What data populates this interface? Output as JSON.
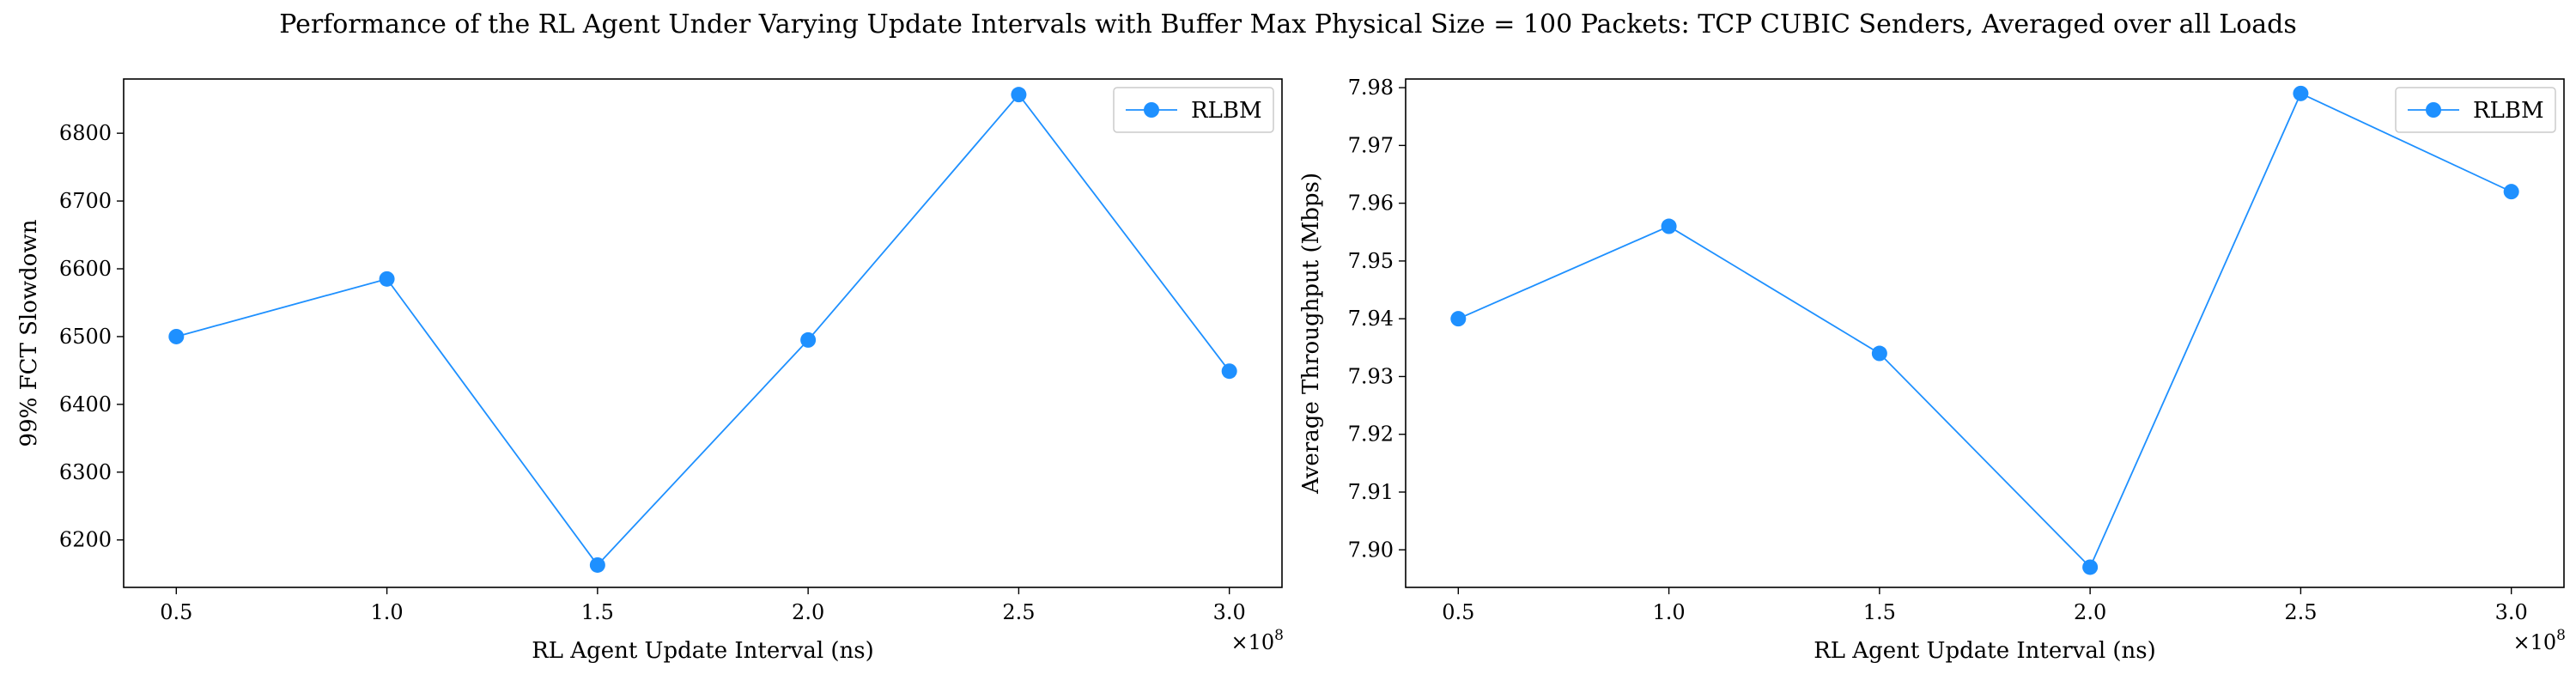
{
  "figure": {
    "title": "Performance of the RL Agent Under Varying Update Intervals with Buffer Max Physical Size = 100 Packets: TCP CUBIC Senders, Averaged over all Loads"
  },
  "colors": {
    "series": "#1e90ff",
    "axes": "#000000",
    "background": "#ffffff"
  },
  "chart_data": [
    {
      "type": "line",
      "xlabel": "RL Agent Update Interval (ns)",
      "ylabel": "99% FCT Slowdown",
      "x_scale_label": "×10",
      "x_scale_exponent": "8",
      "xlim": [
        0.375,
        3.125
      ],
      "ylim": [
        6130,
        6880
      ],
      "xticks": [
        0.5,
        1.0,
        1.5,
        2.0,
        2.5,
        3.0
      ],
      "xtick_labels": [
        "0.5",
        "1.0",
        "1.5",
        "2.0",
        "2.5",
        "3.0"
      ],
      "yticks": [
        6200,
        6300,
        6400,
        6500,
        6600,
        6700,
        6800
      ],
      "ytick_labels": [
        "6200",
        "6300",
        "6400",
        "6500",
        "6600",
        "6700",
        "6800"
      ],
      "legend_position": "top-right",
      "grid": false,
      "series": [
        {
          "name": "RLBM",
          "x": [
            0.5,
            1.0,
            1.5,
            2.0,
            2.5,
            3.0
          ],
          "y": [
            6500,
            6585,
            6163,
            6495,
            6857,
            6449
          ]
        }
      ]
    },
    {
      "type": "line",
      "xlabel": "RL Agent Update Interval (ns)",
      "ylabel": "Average Throughput (Mbps)",
      "x_scale_label": "×10",
      "x_scale_exponent": "8",
      "xlim": [
        0.375,
        3.125
      ],
      "ylim": [
        7.8935,
        7.9815
      ],
      "xticks": [
        0.5,
        1.0,
        1.5,
        2.0,
        2.5,
        3.0
      ],
      "xtick_labels": [
        "0.5",
        "1.0",
        "1.5",
        "2.0",
        "2.5",
        "3.0"
      ],
      "yticks": [
        7.9,
        7.91,
        7.92,
        7.93,
        7.94,
        7.95,
        7.96,
        7.97,
        7.98
      ],
      "ytick_labels": [
        "7.90",
        "7.91",
        "7.92",
        "7.93",
        "7.94",
        "7.95",
        "7.96",
        "7.97",
        "7.98"
      ],
      "legend_position": "top-right",
      "grid": false,
      "series": [
        {
          "name": "RLBM",
          "x": [
            0.5,
            1.0,
            1.5,
            2.0,
            2.5,
            3.0
          ],
          "y": [
            7.94,
            7.956,
            7.934,
            7.897,
            7.979,
            7.962
          ]
        }
      ]
    }
  ]
}
